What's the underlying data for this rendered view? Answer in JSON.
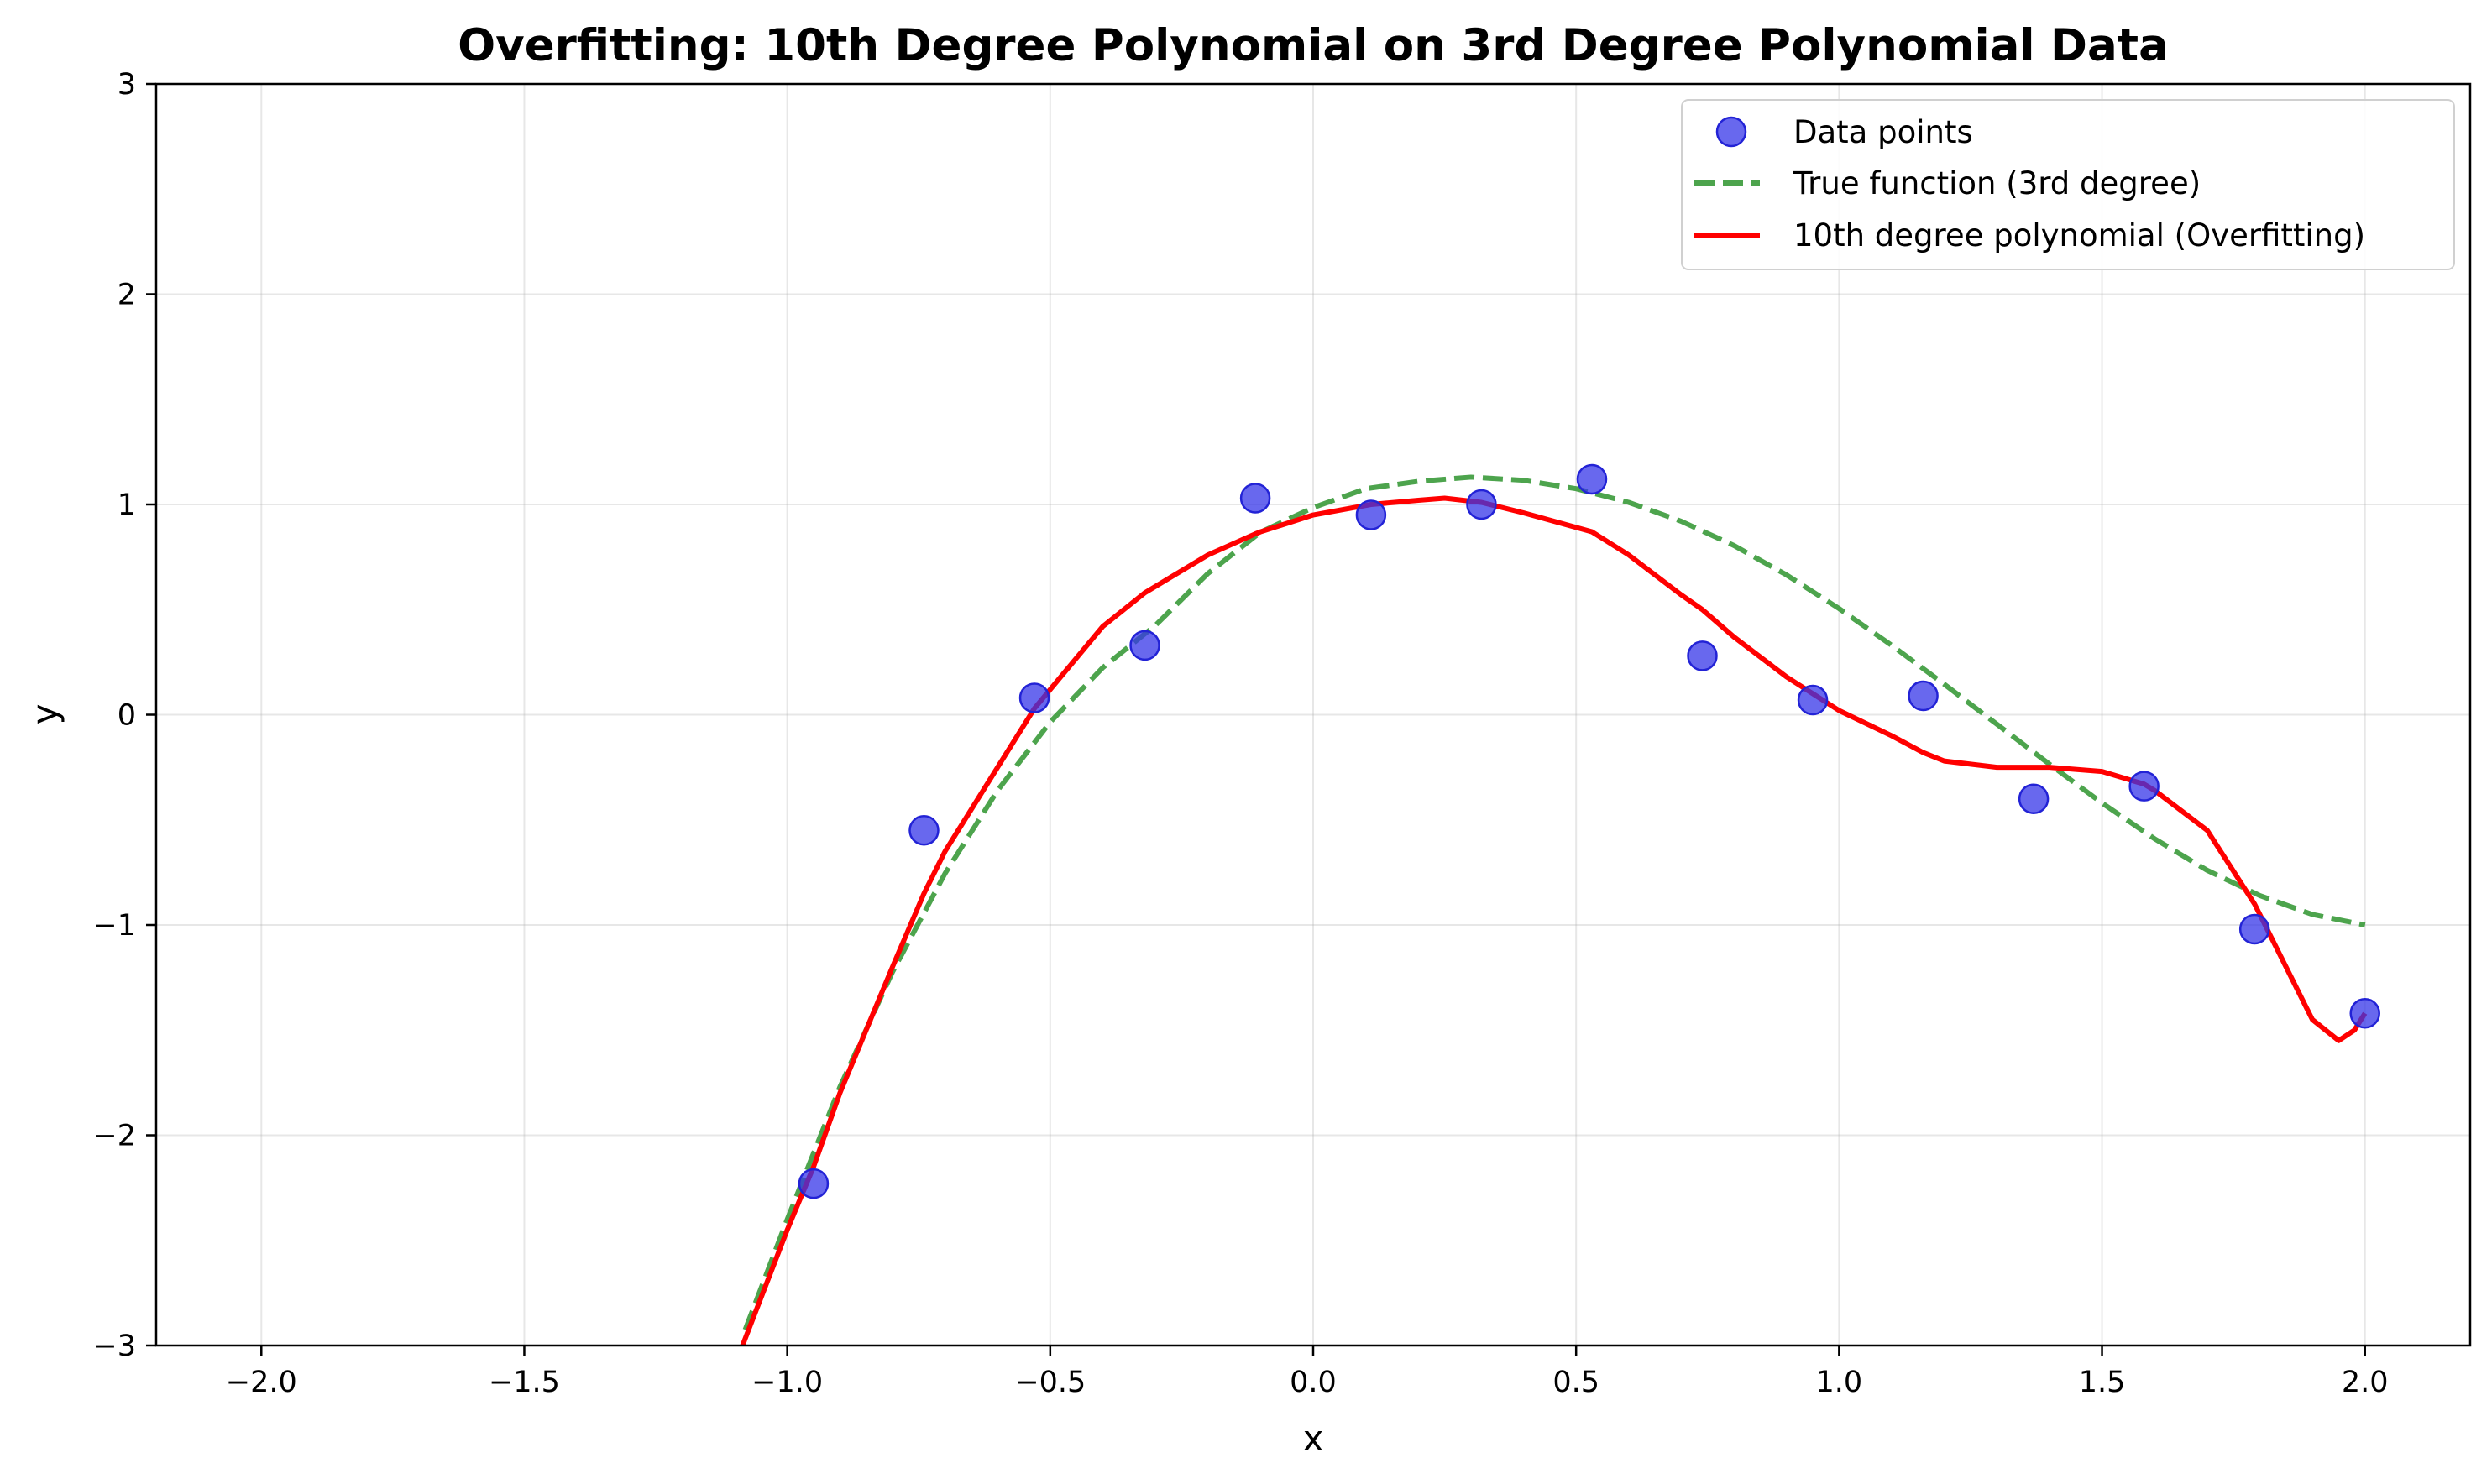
{
  "chart_data": {
    "type": "scatter",
    "title": "Overfitting: 10th Degree Polynomial on 3rd Degree Polynomial Data",
    "xlabel": "x",
    "ylabel": "y",
    "xlim": [
      -2.2,
      2.2
    ],
    "ylim": [
      -3,
      3
    ],
    "x_ticks": [
      -2.0,
      -1.5,
      -1.0,
      -0.5,
      0.0,
      0.5,
      1.0,
      1.5,
      2.0
    ],
    "x_tick_labels": [
      "−2.0",
      "−1.5",
      "−1.0",
      "−0.5",
      "0.0",
      "0.5",
      "1.0",
      "1.5",
      "2.0"
    ],
    "y_ticks": [
      -3,
      -2,
      -1,
      0,
      1,
      2,
      3
    ],
    "y_tick_labels": [
      "−3",
      "−2",
      "−1",
      "0",
      "1",
      "2",
      "3"
    ],
    "grid": true,
    "legend_position": "top-right",
    "series": [
      {
        "name": "Data points",
        "kind": "scatter",
        "color": "#3636e8",
        "x": [
          -0.95,
          -0.74,
          -0.53,
          -0.32,
          -0.11,
          0.11,
          0.32,
          0.53,
          0.74,
          0.95,
          1.16,
          1.37,
          1.58,
          1.79,
          2.0
        ],
        "y": [
          -2.23,
          -0.55,
          0.08,
          0.33,
          1.03,
          0.95,
          1.0,
          1.12,
          0.28,
          0.07,
          0.09,
          -0.4,
          -0.34,
          -1.02,
          -1.42
        ]
      },
      {
        "name": "True function (3rd degree)",
        "kind": "line",
        "style": "dashed",
        "color": "#3a9a3a",
        "x": [
          -1.08,
          -1.0,
          -0.9,
          -0.8,
          -0.7,
          -0.6,
          -0.5,
          -0.4,
          -0.3,
          -0.2,
          -0.1,
          0.0,
          0.1,
          0.2,
          0.3,
          0.4,
          0.5,
          0.6,
          0.7,
          0.8,
          0.9,
          1.0,
          1.1,
          1.2,
          1.3,
          1.4,
          1.5,
          1.6,
          1.7,
          1.8,
          1.9,
          2.0
        ],
        "y": [
          -2.925,
          -2.4,
          -1.771,
          -1.224,
          -0.755,
          -0.36,
          -0.035,
          0.224,
          0.425,
          0.672,
          0.8685,
          0.985,
          1.075,
          1.11,
          1.13,
          1.115,
          1.075,
          1.01,
          0.92,
          0.805,
          0.665,
          0.505,
          0.33,
          0.145,
          -0.045,
          -0.235,
          -0.42,
          -0.59,
          -0.74,
          -0.86,
          -0.95,
          -1.0
        ]
      },
      {
        "name": "10th degree polynomial (Overfitting)",
        "kind": "line",
        "style": "solid",
        "color": "#ff0000",
        "x": [
          -1.085,
          -1.0,
          -0.95,
          -0.9,
          -0.8,
          -0.74,
          -0.7,
          -0.6,
          -0.53,
          -0.5,
          -0.4,
          -0.32,
          -0.3,
          -0.2,
          -0.11,
          -0.1,
          0.0,
          0.11,
          0.2,
          0.25,
          0.32,
          0.4,
          0.53,
          0.6,
          0.7,
          0.74,
          0.8,
          0.9,
          0.95,
          1.0,
          1.1,
          1.16,
          1.2,
          1.3,
          1.37,
          1.4,
          1.5,
          1.58,
          1.6,
          1.7,
          1.79,
          1.8,
          1.85,
          1.9,
          1.95,
          1.98,
          2.0
        ],
        "y": [
          -3.0,
          -2.45,
          -2.15,
          -1.8,
          -1.2,
          -0.85,
          -0.65,
          -0.25,
          0.03,
          0.12,
          0.42,
          0.58,
          0.61,
          0.76,
          0.86,
          0.87,
          0.95,
          1.0,
          1.02,
          1.03,
          1.01,
          0.96,
          0.87,
          0.76,
          0.57,
          0.5,
          0.37,
          0.18,
          0.1,
          0.02,
          -0.1,
          -0.18,
          -0.22,
          -0.25,
          -0.25,
          -0.25,
          -0.27,
          -0.33,
          -0.36,
          -0.55,
          -0.9,
          -0.95,
          -1.2,
          -1.45,
          -1.55,
          -1.5,
          -1.42
        ]
      }
    ]
  }
}
